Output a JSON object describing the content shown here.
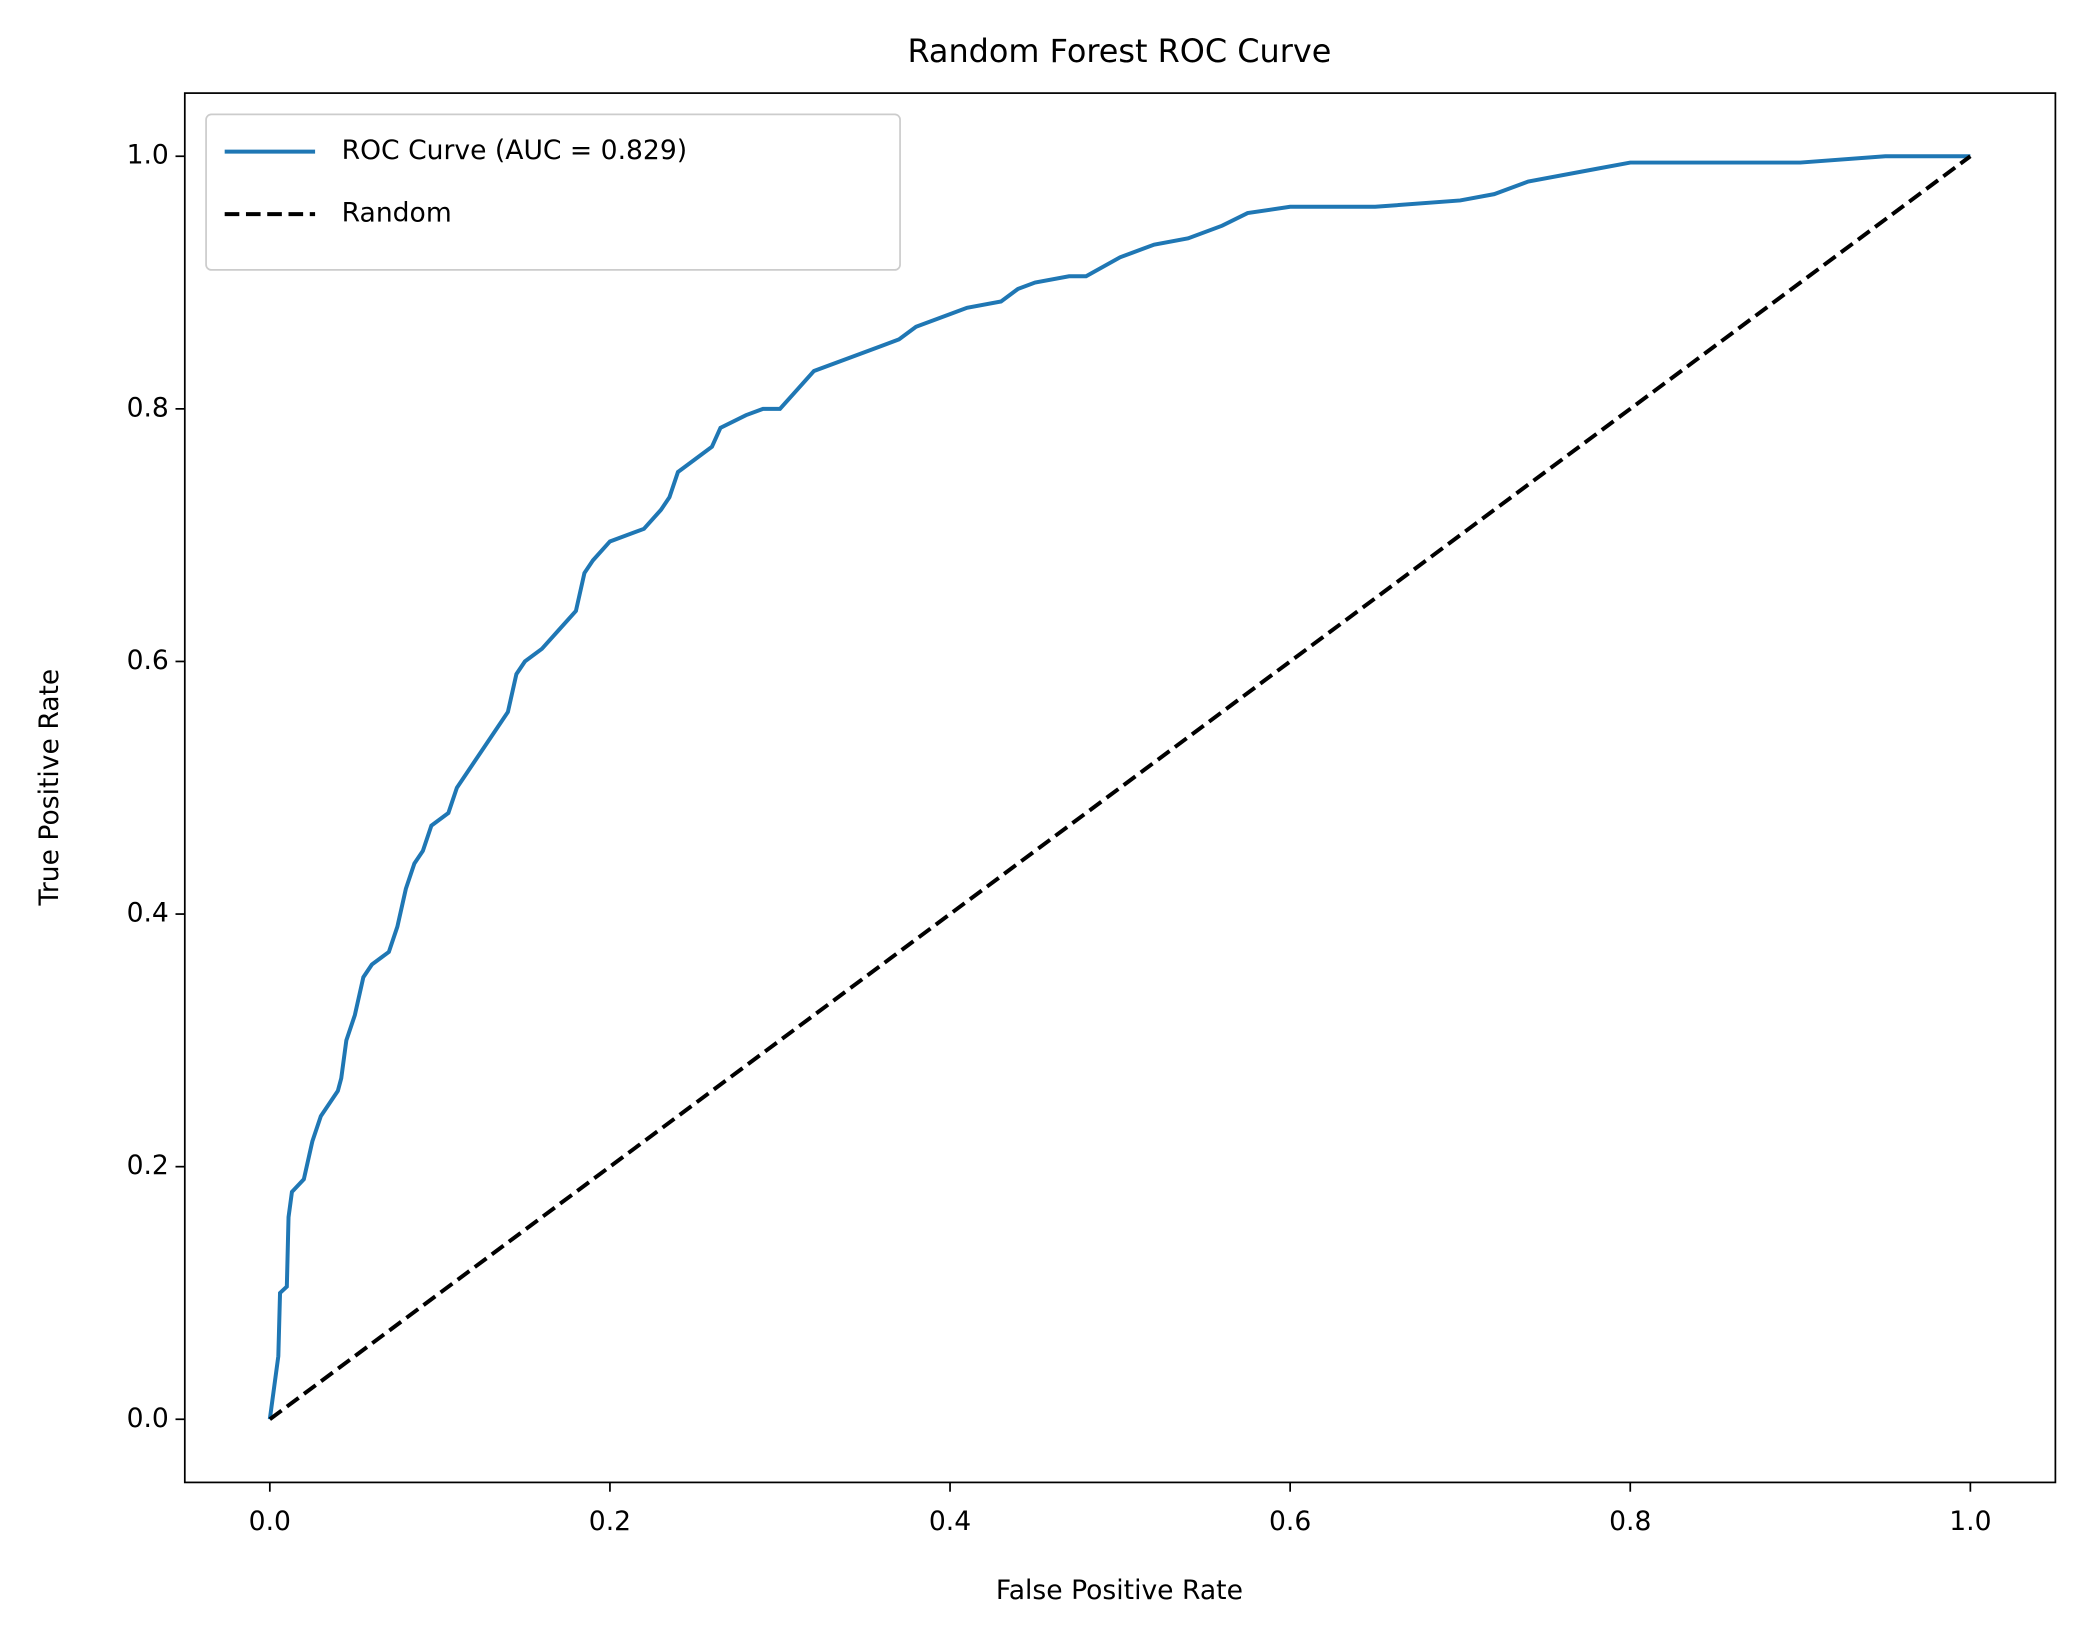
{
  "chart_data": {
    "type": "line",
    "title": "Random Forest ROC Curve",
    "xlabel": "False Positive Rate",
    "ylabel": "True Positive Rate",
    "xlim": [
      -0.05,
      1.05
    ],
    "ylim": [
      -0.05,
      1.05
    ],
    "xticks": [
      {
        "value": 0,
        "label": "0.0"
      },
      0.2,
      0.4,
      0.6,
      0.8,
      {
        "value": 1,
        "label": "1.0"
      }
    ],
    "yticks": [
      {
        "value": 0,
        "label": "0.0"
      },
      0.2,
      0.4,
      0.6,
      0.8,
      {
        "value": 1,
        "label": "1.0"
      }
    ],
    "legend": "upper left",
    "grid": false,
    "series": [
      {
        "name": "ROC Curve (AUC = 0.829)",
        "color": "#1f77b4",
        "style": "solid",
        "x": [
          0,
          0.002,
          0.005,
          0.006,
          0.01,
          0.011,
          0.013,
          0.02,
          0.025,
          0.03,
          0.04,
          0.042,
          0.045,
          0.05,
          0.055,
          0.06,
          0.07,
          0.075,
          0.08,
          0.085,
          0.09,
          0.095,
          0.105,
          0.11,
          0.12,
          0.13,
          0.14,
          0.145,
          0.15,
          0.16,
          0.17,
          0.18,
          0.185,
          0.19,
          0.2,
          0.21,
          0.22,
          0.23,
          0.235,
          0.24,
          0.25,
          0.26,
          0.265,
          0.28,
          0.29,
          0.3,
          0.31,
          0.32,
          0.34,
          0.36,
          0.37,
          0.38,
          0.4,
          0.41,
          0.43,
          0.44,
          0.45,
          0.47,
          0.48,
          0.5,
          0.52,
          0.54,
          0.56,
          0.575,
          0.6,
          0.65,
          0.7,
          0.72,
          0.74,
          0.78,
          0.8,
          0.9,
          0.95,
          1.0
        ],
        "values": [
          0,
          0.02,
          0.05,
          0.1,
          0.105,
          0.16,
          0.18,
          0.19,
          0.22,
          0.24,
          0.26,
          0.27,
          0.3,
          0.32,
          0.35,
          0.36,
          0.37,
          0.39,
          0.42,
          0.44,
          0.45,
          0.47,
          0.48,
          0.5,
          0.52,
          0.54,
          0.56,
          0.59,
          0.6,
          0.61,
          0.625,
          0.64,
          0.67,
          0.68,
          0.695,
          0.7,
          0.705,
          0.72,
          0.73,
          0.75,
          0.76,
          0.77,
          0.785,
          0.795,
          0.8,
          0.8,
          0.815,
          0.83,
          0.84,
          0.85,
          0.855,
          0.865,
          0.875,
          0.88,
          0.885,
          0.895,
          0.9,
          0.905,
          0.905,
          0.92,
          0.93,
          0.935,
          0.945,
          0.955,
          0.96,
          0.96,
          0.965,
          0.97,
          0.98,
          0.99,
          0.995,
          0.995,
          1.0,
          1.0
        ]
      },
      {
        "name": "Random",
        "color": "#000000",
        "style": "dashed",
        "x": [
          0,
          1
        ],
        "values": [
          0,
          1
        ]
      }
    ]
  }
}
